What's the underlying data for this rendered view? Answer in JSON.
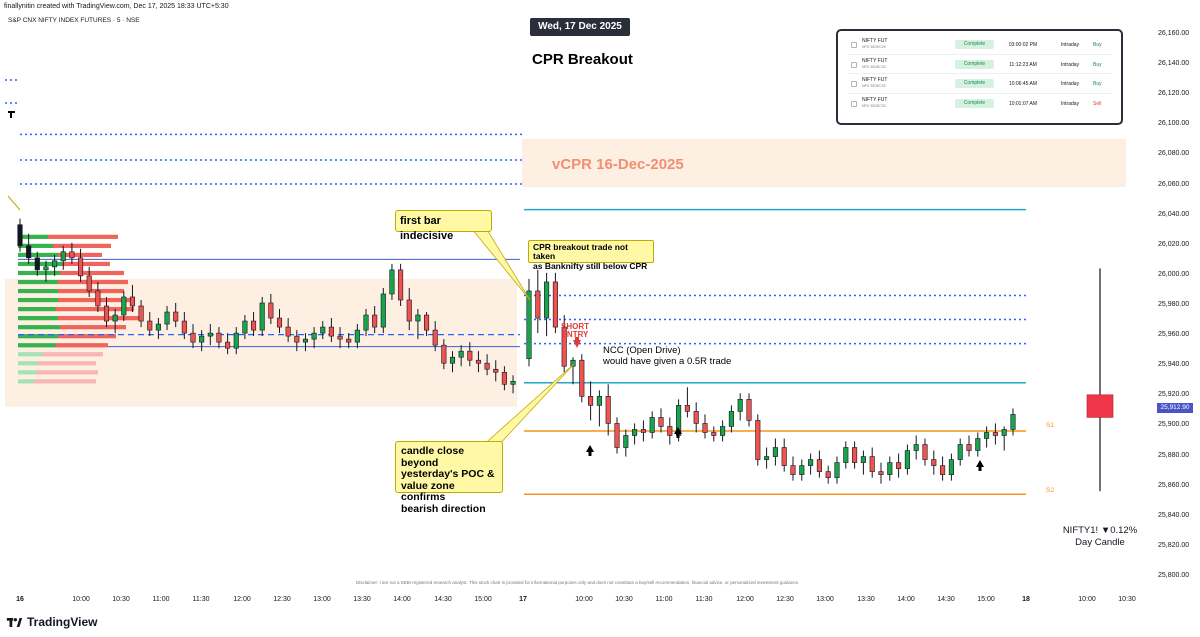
{
  "header": {
    "credit": "finallynitin created with TradingView.com, Dec 17, 2025 18:33 UTC+5:30",
    "symbol": "S&P CNX NIFTY INDEX FUTURES · 5 · NSE"
  },
  "annotations": {
    "date_badge": "Wed, 17 Dec 2025",
    "title": "CPR Breakout",
    "vcpr_label": "vCPR 16-Dec-2025",
    "callout_first_bar": "first bar indecisive",
    "callout_cpr_line1": "CPR breakout trade not taken",
    "callout_cpr_line2": "as Banknifty still below CPR",
    "callout_candle_line1": "candle close beyond",
    "callout_candle_line2": "yesterday's POC &",
    "callout_candle_line3": "value zone confirms",
    "callout_candle_line4": "bearish direction",
    "short_entry_line1": "SHORT",
    "short_entry_line2": "ENTRY",
    "ncc_line1": "NCC (Open Drive)",
    "ncc_line2": "would have given a 0.5R trade",
    "s1": "S1",
    "s2": "S2",
    "ticker_line1": "NIFTY1! ▼0.12%",
    "ticker_line2": "Day Candle",
    "price_badge": "25,912.90",
    "disclaimer": "Disclaimer: I am not a SEBI registered research analyst. This stock chart is provided for informational purposes only and does not constitute a buy/sell recommendation, financial advice, or personalized investment guidance.",
    "logo_text": "TradingView"
  },
  "orders": [
    {
      "instrument": "NIFTY FUT",
      "sub": "NFO 30DEC25",
      "status": "Complete",
      "time": "03:00:02 PM",
      "type": "Intraday",
      "side": "Buy",
      "side_color": "#1b8a4c"
    },
    {
      "instrument": "NIFTY FUT",
      "sub": "NFO 30DEC25",
      "status": "Complete",
      "time": "11:12:23 AM",
      "type": "Intraday",
      "side": "Buy",
      "side_color": "#1b8a4c"
    },
    {
      "instrument": "NIFTY FUT",
      "sub": "NFO 30DEC25",
      "status": "Complete",
      "time": "10:06:45 AM",
      "type": "Intraday",
      "side": "Buy",
      "side_color": "#1b8a4c"
    },
    {
      "instrument": "NIFTY FUT",
      "sub": "NFO 30DEC25",
      "status": "Complete",
      "time": "10:01:07 AM",
      "type": "Intraday",
      "side": "Sell",
      "side_color": "#e53935"
    }
  ],
  "colors": {
    "up": "#1aa34a",
    "down": "#ef5350",
    "cyan": "#26a6c2",
    "blue": "#2962ff",
    "orange": "#f7931a",
    "value_zone": "#fdf0e3"
  },
  "chart_data": {
    "type": "candlestick",
    "price_axis": [
      "26,160.00",
      "26,140.00",
      "26,120.00",
      "26,100.00",
      "26,080.00",
      "26,060.00",
      "26,040.00",
      "26,020.00",
      "26,000.00",
      "25,980.00",
      "25,960.00",
      "25,940.00",
      "25,920.00",
      "25,900.00",
      "25,880.00",
      "25,860.00",
      "25,840.00",
      "25,820.00",
      "25,800.00"
    ],
    "time_axis": [
      {
        "label": "16",
        "bold": true
      },
      {
        "label": "10:00"
      },
      {
        "label": "10:30"
      },
      {
        "label": "11:00"
      },
      {
        "label": "11:30"
      },
      {
        "label": "12:00"
      },
      {
        "label": "12:30"
      },
      {
        "label": "13:00"
      },
      {
        "label": "13:30"
      },
      {
        "label": "14:00"
      },
      {
        "label": "14:30"
      },
      {
        "label": "15:00"
      },
      {
        "label": "17",
        "bold": true
      },
      {
        "label": "10:00"
      },
      {
        "label": "10:30"
      },
      {
        "label": "11:00"
      },
      {
        "label": "11:30"
      },
      {
        "label": "12:00"
      },
      {
        "label": "12:30"
      },
      {
        "label": "13:00"
      },
      {
        "label": "13:30"
      },
      {
        "label": "14:00"
      },
      {
        "label": "14:30"
      },
      {
        "label": "15:00"
      },
      {
        "label": "18",
        "bold": true
      },
      {
        "label": "10:00"
      },
      {
        "label": "10:30"
      }
    ],
    "levels": {
      "top_cyan": 26044,
      "bottom_cyan": 25929,
      "pivot_dotted_1": 25987,
      "pivot_dotted_2": 25971,
      "pivot_dotted_3": 25955,
      "s1": 25897,
      "s2": 25855,
      "prev_tc": 26011,
      "prev_bc": 25953,
      "prev_poc": 25961,
      "vcpr_top": 26091,
      "vcpr_bottom": 26059,
      "left_dotted_1": 26094,
      "left_dotted_2": 26077,
      "left_dotted_3": 26061
    },
    "day_candle": {
      "open": 25921,
      "high": 26005,
      "low": 25857,
      "close": 25906
    },
    "last_price": 25912.9,
    "dec16_candles": [
      [
        26034,
        26038,
        26016,
        26020
      ],
      [
        26020,
        26028,
        26008,
        26012
      ],
      [
        26012,
        26016,
        26000,
        26004
      ],
      [
        26004,
        26010,
        25996,
        26006
      ],
      [
        26006,
        26014,
        26000,
        26010
      ],
      [
        26010,
        26020,
        26004,
        26016
      ],
      [
        26016,
        26022,
        26008,
        26012
      ],
      [
        26012,
        26018,
        25996,
        26000
      ],
      [
        26000,
        26006,
        25986,
        25990
      ],
      [
        25990,
        25996,
        25976,
        25980
      ],
      [
        25980,
        25986,
        25966,
        25970
      ],
      [
        25970,
        25978,
        25962,
        25974
      ],
      [
        25974,
        25990,
        25970,
        25986
      ],
      [
        25986,
        25994,
        25976,
        25980
      ],
      [
        25980,
        25984,
        25966,
        25970
      ],
      [
        25970,
        25976,
        25960,
        25964
      ],
      [
        25964,
        25972,
        25958,
        25968
      ],
      [
        25968,
        25980,
        25964,
        25976
      ],
      [
        25976,
        25982,
        25966,
        25970
      ],
      [
        25970,
        25976,
        25958,
        25962
      ],
      [
        25962,
        25968,
        25952,
        25956
      ],
      [
        25956,
        25964,
        25950,
        25960
      ],
      [
        25960,
        25968,
        25954,
        25962
      ],
      [
        25962,
        25966,
        25952,
        25956
      ],
      [
        25956,
        25962,
        25948,
        25952
      ],
      [
        25952,
        25966,
        25948,
        25962
      ],
      [
        25962,
        25974,
        25958,
        25970
      ],
      [
        25970,
        25976,
        25960,
        25964
      ],
      [
        25964,
        25986,
        25960,
        25982
      ],
      [
        25982,
        25988,
        25968,
        25972
      ],
      [
        25972,
        25978,
        25962,
        25966
      ],
      [
        25966,
        25972,
        25956,
        25960
      ],
      [
        25960,
        25964,
        25950,
        25956
      ],
      [
        25956,
        25962,
        25950,
        25958
      ],
      [
        25958,
        25966,
        25952,
        25962
      ],
      [
        25962,
        25970,
        25958,
        25966
      ],
      [
        25966,
        25972,
        25956,
        25960
      ],
      [
        25960,
        25966,
        25952,
        25958
      ],
      [
        25958,
        25962,
        25952,
        25956
      ],
      [
        25956,
        25968,
        25952,
        25964
      ],
      [
        25964,
        25978,
        25960,
        25974
      ],
      [
        25974,
        25980,
        25962,
        25966
      ],
      [
        25966,
        25992,
        25962,
        25988
      ],
      [
        25988,
        26008,
        25984,
        26004
      ],
      [
        26004,
        26008,
        25980,
        25984
      ],
      [
        25984,
        25992,
        25964,
        25970
      ],
      [
        25970,
        25978,
        25958,
        25974
      ],
      [
        25974,
        25976,
        25960,
        25964
      ],
      [
        25964,
        25970,
        25950,
        25954
      ],
      [
        25954,
        25958,
        25938,
        25942
      ],
      [
        25942,
        25950,
        25936,
        25946
      ],
      [
        25946,
        25954,
        25940,
        25950
      ],
      [
        25950,
        25956,
        25940,
        25944
      ],
      [
        25944,
        25950,
        25936,
        25942
      ],
      [
        25942,
        25948,
        25934,
        25938
      ],
      [
        25938,
        25944,
        25930,
        25936
      ],
      [
        25936,
        25940,
        25924,
        25928
      ],
      [
        25928,
        25934,
        25922,
        25930
      ]
    ],
    "dec17_candles": [
      [
        25945,
        25998,
        25940,
        25990
      ],
      [
        25990,
        26004,
        25962,
        25972
      ],
      [
        25972,
        26002,
        25960,
        25996
      ],
      [
        25996,
        26002,
        25962,
        25966
      ],
      [
        25966,
        25974,
        25936,
        25940
      ],
      [
        25940,
        25946,
        25928,
        25944
      ],
      [
        25944,
        25948,
        25916,
        25920
      ],
      [
        25920,
        25930,
        25904,
        25914
      ],
      [
        25914,
        25924,
        25900,
        25920
      ],
      [
        25920,
        25928,
        25894,
        25902
      ],
      [
        25902,
        25906,
        25882,
        25886
      ],
      [
        25886,
        25898,
        25880,
        25894
      ],
      [
        25894,
        25902,
        25888,
        25898
      ],
      [
        25898,
        25904,
        25890,
        25896
      ],
      [
        25896,
        25910,
        25892,
        25906
      ],
      [
        25906,
        25912,
        25896,
        25900
      ],
      [
        25900,
        25906,
        25888,
        25894
      ],
      [
        25894,
        25918,
        25890,
        25914
      ],
      [
        25914,
        25926,
        25906,
        25910
      ],
      [
        25910,
        25916,
        25896,
        25902
      ],
      [
        25902,
        25908,
        25892,
        25896
      ],
      [
        25896,
        25900,
        25890,
        25894
      ],
      [
        25894,
        25904,
        25890,
        25900
      ],
      [
        25900,
        25914,
        25896,
        25910
      ],
      [
        25910,
        25922,
        25904,
        25918
      ],
      [
        25918,
        25922,
        25900,
        25904
      ],
      [
        25904,
        25908,
        25874,
        25878
      ],
      [
        25878,
        25886,
        25872,
        25880
      ],
      [
        25880,
        25892,
        25874,
        25886
      ],
      [
        25886,
        25892,
        25870,
        25874
      ],
      [
        25874,
        25880,
        25864,
        25868
      ],
      [
        25868,
        25878,
        25864,
        25874
      ],
      [
        25874,
        25882,
        25868,
        25878
      ],
      [
        25878,
        25884,
        25866,
        25870
      ],
      [
        25870,
        25874,
        25862,
        25866
      ],
      [
        25866,
        25880,
        25862,
        25876
      ],
      [
        25876,
        25890,
        25872,
        25886
      ],
      [
        25886,
        25890,
        25872,
        25876
      ],
      [
        25876,
        25884,
        25868,
        25880
      ],
      [
        25880,
        25886,
        25866,
        25870
      ],
      [
        25870,
        25876,
        25862,
        25868
      ],
      [
        25868,
        25880,
        25864,
        25876
      ],
      [
        25876,
        25882,
        25866,
        25872
      ],
      [
        25872,
        25888,
        25868,
        25884
      ],
      [
        25884,
        25894,
        25878,
        25888
      ],
      [
        25888,
        25892,
        25874,
        25878
      ],
      [
        25878,
        25884,
        25868,
        25874
      ],
      [
        25874,
        25880,
        25864,
        25868
      ],
      [
        25868,
        25882,
        25864,
        25878
      ],
      [
        25878,
        25892,
        25874,
        25888
      ],
      [
        25888,
        25894,
        25880,
        25884
      ],
      [
        25884,
        25896,
        25880,
        25892
      ],
      [
        25892,
        25900,
        25886,
        25896
      ],
      [
        25896,
        25902,
        25888,
        25894
      ],
      [
        25894,
        25900,
        25884,
        25898
      ],
      [
        25898,
        25912,
        25894,
        25908
      ]
    ]
  }
}
